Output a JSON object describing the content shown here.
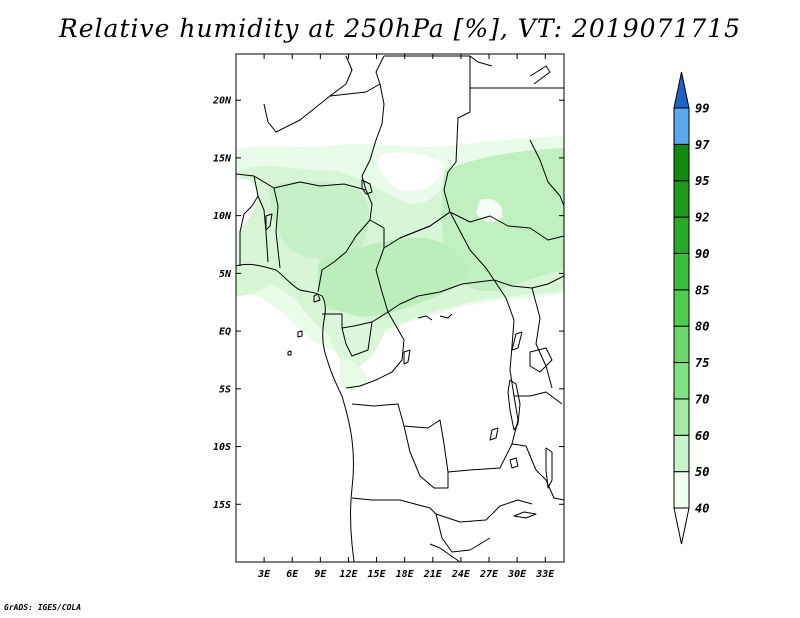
{
  "title": "Relative humidity at 250hPa [%], VT: 2019071715",
  "credit": "GrADS: IGES/COLA",
  "map": {
    "variable": "Relative humidity",
    "level": "250hPa",
    "units": "%",
    "valid_time": "2019071715",
    "lon_range_deg": [
      0,
      35
    ],
    "lat_range_deg": [
      -20,
      24
    ],
    "lon_ticks": [
      {
        "value": 3,
        "label": "3E"
      },
      {
        "value": 6,
        "label": "6E"
      },
      {
        "value": 9,
        "label": "9E"
      },
      {
        "value": 12,
        "label": "12E"
      },
      {
        "value": 15,
        "label": "15E"
      },
      {
        "value": 18,
        "label": "18E"
      },
      {
        "value": 21,
        "label": "21E"
      },
      {
        "value": 24,
        "label": "24E"
      },
      {
        "value": 27,
        "label": "27E"
      },
      {
        "value": 30,
        "label": "30E"
      },
      {
        "value": 33,
        "label": "33E"
      }
    ],
    "lat_ticks": [
      {
        "value": 20,
        "label": "20N"
      },
      {
        "value": 15,
        "label": "15N"
      },
      {
        "value": 10,
        "label": "10N"
      },
      {
        "value": 5,
        "label": "5N"
      },
      {
        "value": 0,
        "label": "EQ"
      },
      {
        "value": -5,
        "label": "5S"
      },
      {
        "value": -10,
        "label": "10S"
      },
      {
        "value": -15,
        "label": "15S"
      }
    ]
  },
  "colorbar": {
    "levels": [
      {
        "value": "40",
        "color": "#f0fff0"
      },
      {
        "value": "50",
        "color": "#c8f5c8"
      },
      {
        "value": "60",
        "color": "#a3eba3"
      },
      {
        "value": "70",
        "color": "#82e182"
      },
      {
        "value": "75",
        "color": "#6ad76a"
      },
      {
        "value": "80",
        "color": "#50cd50"
      },
      {
        "value": "85",
        "color": "#3cbe3c"
      },
      {
        "value": "90",
        "color": "#28aa28"
      },
      {
        "value": "92",
        "color": "#1e9a1e"
      },
      {
        "value": "95",
        "color": "#118a11"
      },
      {
        "value": "97",
        "color": "#5aa8f0"
      },
      {
        "value": "99",
        "color": "#2a78e0"
      }
    ],
    "below_color": "#ffffff",
    "above_color": "#1e64c8"
  }
}
